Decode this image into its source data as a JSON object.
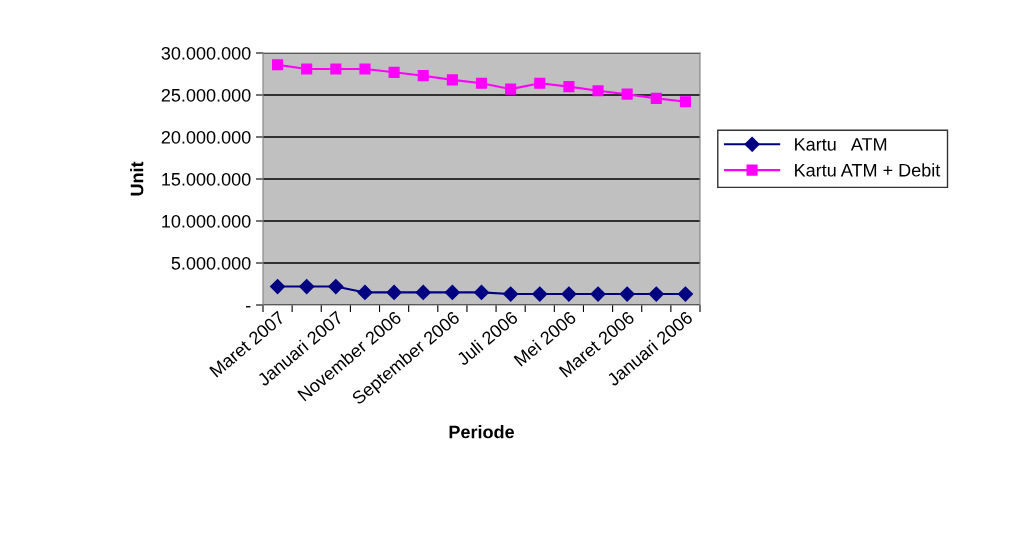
{
  "chart_data": {
    "type": "line",
    "xlabel": "Periode",
    "ylabel": "Unit",
    "categories": [
      "Maret 2007",
      null,
      "Januari 2007",
      null,
      "November 2006",
      null,
      "September 2006",
      null,
      "Juli 2006",
      null,
      "Mei 2006",
      null,
      "Maret 2006",
      null,
      "Januari 2006"
    ],
    "series": [
      {
        "name": "Kartu   ATM",
        "color": "#000080",
        "marker": "diamond",
        "values": [
          2200000,
          2200000,
          2200000,
          1500000,
          1500000,
          1500000,
          1500000,
          1500000,
          1300000,
          1300000,
          1300000,
          1300000,
          1300000,
          1300000,
          1300000
        ]
      },
      {
        "name": "Kartu ATM + Debit",
        "color": "#ff00ff",
        "marker": "square",
        "values": [
          28600000,
          28100000,
          28100000,
          28100000,
          27700000,
          27300000,
          26800000,
          26400000,
          25700000,
          26400000,
          26000000,
          25500000,
          25100000,
          24600000,
          24200000
        ]
      }
    ],
    "ylim": [
      0,
      30000000
    ],
    "yticks": [
      {
        "value": 0,
        "label": "-"
      },
      {
        "value": 5000000,
        "label": "5.000.000"
      },
      {
        "value": 10000000,
        "label": "10.000.000"
      },
      {
        "value": 15000000,
        "label": "15.000.000"
      },
      {
        "value": 20000000,
        "label": "20.000.000"
      },
      {
        "value": 25000000,
        "label": "25.000.000"
      },
      {
        "value": 30000000,
        "label": "30.000.000"
      }
    ],
    "grid": "y",
    "legend": "right",
    "line_style": "solid"
  }
}
